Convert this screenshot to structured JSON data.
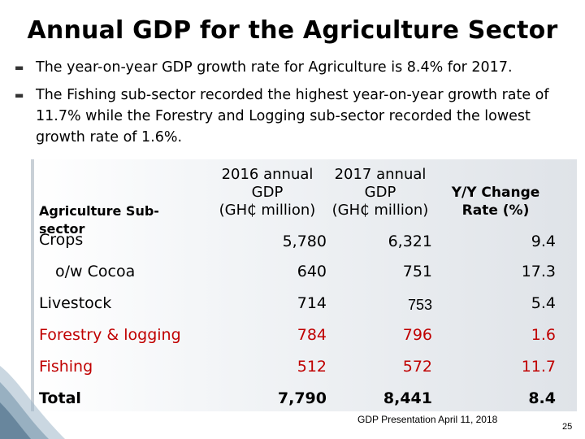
{
  "title": "Annual GDP for the Agriculture Sector",
  "bullets": [
    "The year-on-year GDP growth rate for Agriculture is 8.4% for 2017.",
    "The Fishing sub-sector recorded the highest year-on-year growth rate of 11.7% while the Forestry and Logging sub-sector recorded the lowest growth rate of 1.6%."
  ],
  "table": {
    "headers": {
      "subsector": "Agriculture Sub-sector",
      "gdp2016_line1": "2016 annual GDP",
      "gdp2016_line2": "(GH₵ million)",
      "gdp2017_line1": "2017 annual GDP",
      "gdp2017_line2": "(GH₵ million)",
      "change_line1": "Y/Y Change",
      "change_line2": "Rate (%)"
    },
    "rows": [
      {
        "label": "Crops",
        "gdp2016": "5,780",
        "gdp2017": "6,321",
        "change": "9.4"
      },
      {
        "label": "o/w Cocoa",
        "gdp2016": "640",
        "gdp2017": "751",
        "change": "17.3"
      },
      {
        "label": "Livestock",
        "gdp2016": "714",
        "gdp2017": "753",
        "change": "5.4"
      },
      {
        "label": "Forestry & logging",
        "gdp2016": "784",
        "gdp2017": "796",
        "change": "1.6"
      },
      {
        "label": "Fishing",
        "gdp2016": "512",
        "gdp2017": "572",
        "change": "11.7"
      },
      {
        "label": "Total",
        "gdp2016": "7,790",
        "gdp2017": "8,441",
        "change": "8.4"
      }
    ]
  },
  "footer": "GDP Presentation April 11, 2018",
  "page_number": "25",
  "colors": {
    "highlight": "#c00000"
  }
}
